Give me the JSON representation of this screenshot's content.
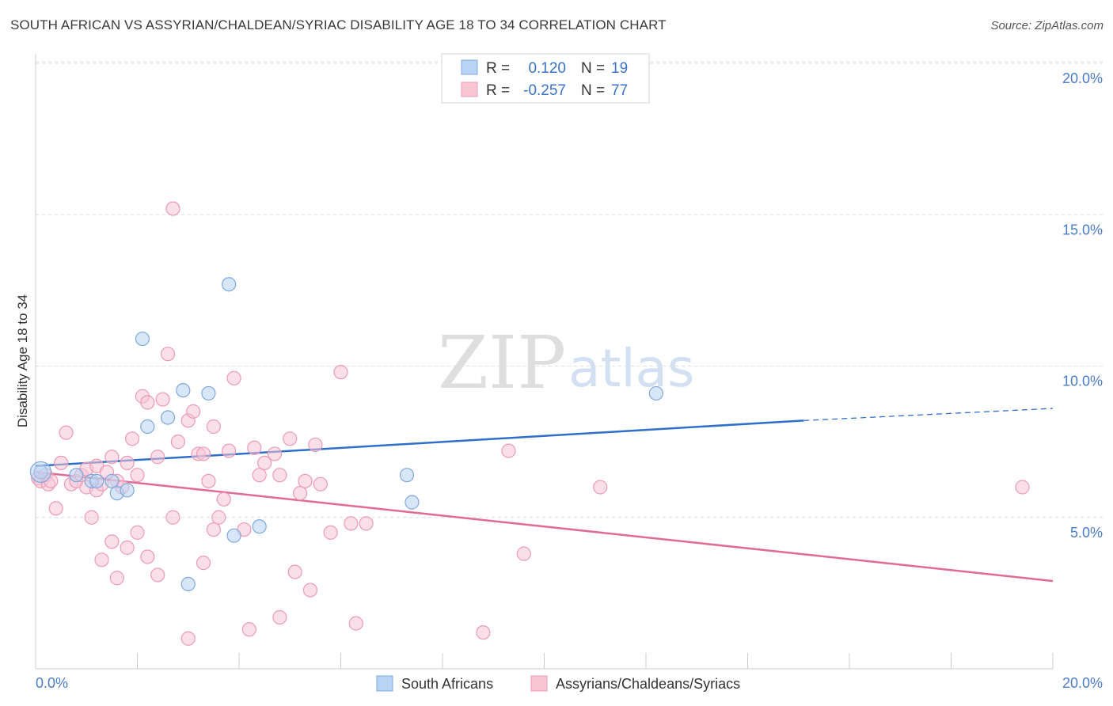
{
  "title": "SOUTH AFRICAN VS ASSYRIAN/CHALDEAN/SYRIAC DISABILITY AGE 18 TO 34 CORRELATION CHART",
  "source": "Source: ZipAtlas.com",
  "watermark": {
    "zip": "ZIP",
    "atlas": "atlas"
  },
  "colors": {
    "blue_fill": "#b8d3f3",
    "blue_stroke": "#7fa8dc",
    "blue_line": "#2f6fca",
    "pink_fill": "#f8c5d5",
    "pink_stroke": "#eb9ab5",
    "pink_line": "#e06b96",
    "grid": "#dddddd",
    "tick_label": "#4a7cc7"
  },
  "legend": {
    "rows": [
      {
        "r_label": "R =",
        "r_value": "0.120",
        "n_label": "N =",
        "n_value": "19",
        "series": "blue"
      },
      {
        "r_label": "R =",
        "r_value": "-0.257",
        "n_label": "N =",
        "n_value": "77",
        "series": "pink"
      }
    ]
  },
  "chart_data": {
    "type": "scatter",
    "title": "SOUTH AFRICAN VS ASSYRIAN/CHALDEAN/SYRIAC DISABILITY AGE 18 TO 34 CORRELATION CHART",
    "xlabel": "",
    "ylabel": "Disability Age 18 to 34",
    "xlim": [
      0,
      20
    ],
    "ylim": [
      0,
      20
    ],
    "x_ticks": [
      "0.0%",
      "20.0%"
    ],
    "y_ticks": [
      {
        "value": 5,
        "label": "5.0%"
      },
      {
        "value": 10,
        "label": "10.0%"
      },
      {
        "value": 15,
        "label": "15.0%"
      },
      {
        "value": 20,
        "label": "20.0%"
      }
    ],
    "grid": true,
    "legend_position": "top-center",
    "series": [
      {
        "name": "South Africans",
        "color": "blue",
        "R": 0.12,
        "N": 19,
        "trend": {
          "x0": 0,
          "y0": 6.7,
          "x1": 15.1,
          "y1": 8.2,
          "dash_to_x": 20,
          "dash_to_y": 8.6
        },
        "points": [
          [
            0.1,
            6.5
          ],
          [
            0.8,
            6.4
          ],
          [
            1.1,
            6.2
          ],
          [
            1.2,
            6.2
          ],
          [
            1.5,
            6.2
          ],
          [
            1.6,
            5.8
          ],
          [
            1.8,
            5.9
          ],
          [
            2.1,
            10.9
          ],
          [
            2.2,
            8.0
          ],
          [
            2.6,
            8.3
          ],
          [
            2.9,
            9.2
          ],
          [
            3.0,
            2.8
          ],
          [
            3.4,
            9.1
          ],
          [
            3.8,
            12.7
          ],
          [
            3.9,
            4.4
          ],
          [
            4.4,
            4.7
          ],
          [
            7.3,
            6.4
          ],
          [
            7.4,
            5.5
          ],
          [
            12.2,
            9.1
          ]
        ]
      },
      {
        "name": "Assyrians/Chaldeans/Syriacs",
        "color": "pink",
        "R": -0.257,
        "N": 77,
        "trend": {
          "x0": 0,
          "y0": 6.5,
          "x1": 20,
          "y1": 2.9
        },
        "points": [
          [
            0.05,
            6.3
          ],
          [
            0.1,
            6.2
          ],
          [
            0.2,
            6.4
          ],
          [
            0.25,
            6.1
          ],
          [
            0.3,
            6.2
          ],
          [
            0.4,
            5.3
          ],
          [
            0.5,
            6.8
          ],
          [
            0.6,
            7.8
          ],
          [
            0.7,
            6.1
          ],
          [
            0.8,
            6.2
          ],
          [
            0.9,
            6.4
          ],
          [
            1.0,
            6.6
          ],
          [
            1.0,
            6.0
          ],
          [
            1.2,
            5.9
          ],
          [
            1.2,
            6.7
          ],
          [
            1.3,
            6.1
          ],
          [
            1.4,
            6.5
          ],
          [
            1.5,
            7.0
          ],
          [
            1.6,
            6.2
          ],
          [
            1.7,
            6.0
          ],
          [
            1.8,
            6.8
          ],
          [
            1.9,
            7.6
          ],
          [
            2.0,
            6.4
          ],
          [
            2.1,
            9.0
          ],
          [
            2.2,
            8.8
          ],
          [
            2.4,
            7.0
          ],
          [
            2.5,
            8.9
          ],
          [
            2.6,
            10.4
          ],
          [
            2.7,
            15.2
          ],
          [
            2.8,
            7.5
          ],
          [
            3.0,
            8.2
          ],
          [
            3.1,
            8.5
          ],
          [
            3.2,
            7.1
          ],
          [
            3.3,
            7.1
          ],
          [
            3.4,
            6.2
          ],
          [
            3.5,
            8.0
          ],
          [
            3.6,
            5.0
          ],
          [
            3.7,
            5.6
          ],
          [
            3.8,
            7.2
          ],
          [
            3.9,
            9.6
          ],
          [
            4.1,
            4.6
          ],
          [
            4.3,
            7.3
          ],
          [
            4.4,
            6.4
          ],
          [
            4.5,
            6.8
          ],
          [
            4.7,
            7.1
          ],
          [
            4.8,
            6.4
          ],
          [
            5.0,
            7.6
          ],
          [
            5.2,
            5.8
          ],
          [
            5.3,
            6.2
          ],
          [
            5.5,
            7.4
          ],
          [
            5.6,
            6.1
          ],
          [
            5.8,
            4.5
          ],
          [
            6.0,
            9.8
          ],
          [
            6.2,
            4.8
          ],
          [
            6.5,
            4.8
          ],
          [
            1.1,
            5.0
          ],
          [
            1.3,
            3.6
          ],
          [
            1.5,
            4.2
          ],
          [
            1.6,
            3.0
          ],
          [
            1.8,
            4.0
          ],
          [
            2.0,
            4.5
          ],
          [
            2.2,
            3.7
          ],
          [
            2.4,
            3.1
          ],
          [
            2.7,
            5.0
          ],
          [
            3.0,
            1.0
          ],
          [
            3.3,
            3.5
          ],
          [
            3.5,
            4.6
          ],
          [
            4.2,
            1.3
          ],
          [
            4.8,
            1.7
          ],
          [
            5.1,
            3.2
          ],
          [
            5.4,
            2.6
          ],
          [
            6.3,
            1.5
          ],
          [
            8.8,
            1.2
          ],
          [
            9.3,
            7.2
          ],
          [
            9.6,
            3.8
          ],
          [
            11.1,
            6.0
          ],
          [
            19.4,
            6.0
          ]
        ]
      }
    ]
  }
}
